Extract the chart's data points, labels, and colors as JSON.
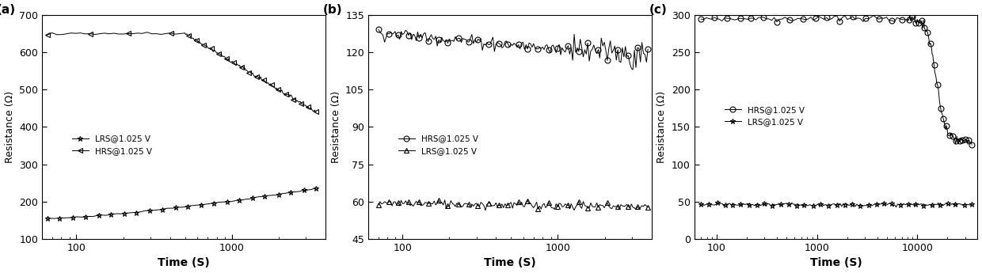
{
  "panel_a": {
    "xlabel": "Time (S)",
    "ylabel": "Resistance (Ω)",
    "xlim": [
      60,
      4000
    ],
    "ylim": [
      100,
      700
    ],
    "yticks": [
      100,
      200,
      300,
      400,
      500,
      600,
      700
    ],
    "xticks": [
      100,
      1000
    ],
    "legend_lrs": "LRS@1.025 V",
    "legend_hrs": "HRS@1.025 V",
    "label": "(a)"
  },
  "panel_b": {
    "xlabel": "Time (S)",
    "ylabel": "Resistance (Ω)",
    "xlim": [
      60,
      4000
    ],
    "ylim": [
      45,
      135
    ],
    "yticks": [
      45,
      60,
      75,
      90,
      105,
      120,
      135
    ],
    "xticks": [
      100,
      1000
    ],
    "legend_hrs": "HRS@1.025 V",
    "legend_lrs": "LRS@1.025 V",
    "label": "(b)"
  },
  "panel_c": {
    "xlabel": "Time (S)",
    "ylabel": "Resistance (Ω)",
    "xlim": [
      60,
      40000
    ],
    "ylim": [
      0,
      300
    ],
    "yticks": [
      0,
      50,
      100,
      150,
      200,
      250,
      300
    ],
    "xticks": [
      100,
      1000,
      10000
    ],
    "legend_hrs": "HRS@1.025 V",
    "legend_lrs": "LRS@1.025 V",
    "label": "(c)"
  },
  "bg_color": "#ffffff",
  "line_color": "#000000"
}
